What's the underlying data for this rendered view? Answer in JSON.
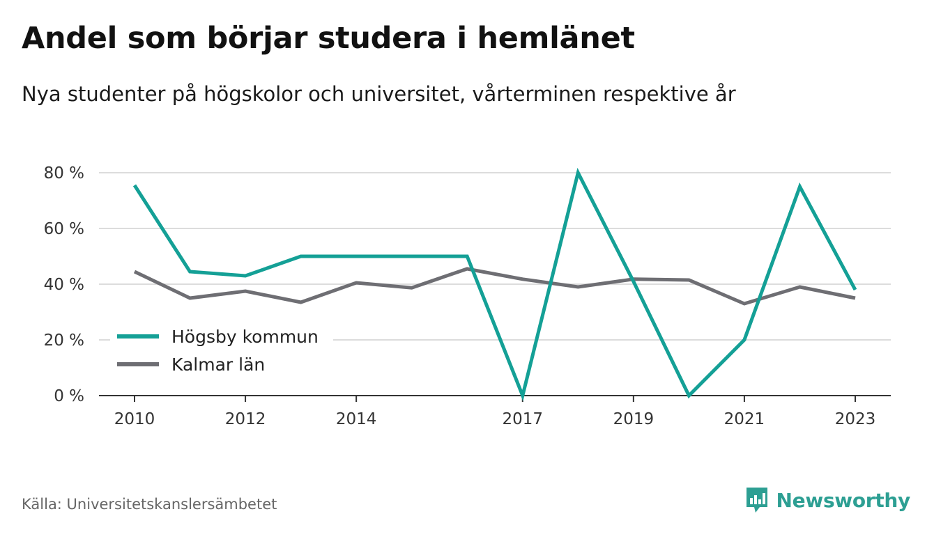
{
  "title": "Andel som börjar studera i hemlänet",
  "subtitle": "Nya studenter på högskolor och universitet, vårterminen respektive år",
  "source": "Källa: Universitetskanslersämbetet",
  "brand": {
    "name": "Newsworthy",
    "icon": "newsworthy-logo-icon",
    "color": "#2d9f93"
  },
  "chart_data": {
    "type": "line",
    "x": [
      2010,
      2011,
      2012,
      2013,
      2014,
      2015,
      2016,
      2017,
      2018,
      2019,
      2020,
      2021,
      2022,
      2023
    ],
    "xticks": [
      2010,
      2012,
      2014,
      2017,
      2019,
      2021,
      2023
    ],
    "xtick_labels": [
      "2010",
      "2012",
      "2014",
      "2017",
      "2019",
      "2021",
      "2023"
    ],
    "yticks": [
      0,
      20,
      40,
      60,
      80
    ],
    "ytick_labels": [
      "0 %",
      "20 %",
      "40 %",
      "60 %",
      "80 %"
    ],
    "ylim": [
      0,
      80
    ],
    "grid": true,
    "legend_position": "bottom-left",
    "series": [
      {
        "name": "Högsby kommun",
        "color": "#14a096",
        "values": [
          75.5,
          44.5,
          43,
          50,
          50,
          50,
          50,
          0,
          80,
          41,
          0,
          20,
          75,
          38
        ]
      },
      {
        "name": "Kalmar län",
        "color": "#6e6e73",
        "values": [
          44.5,
          35,
          37.5,
          33.5,
          40.5,
          38.7,
          45.5,
          41.8,
          39,
          41.8,
          41.5,
          33,
          39,
          35
        ]
      }
    ]
  }
}
